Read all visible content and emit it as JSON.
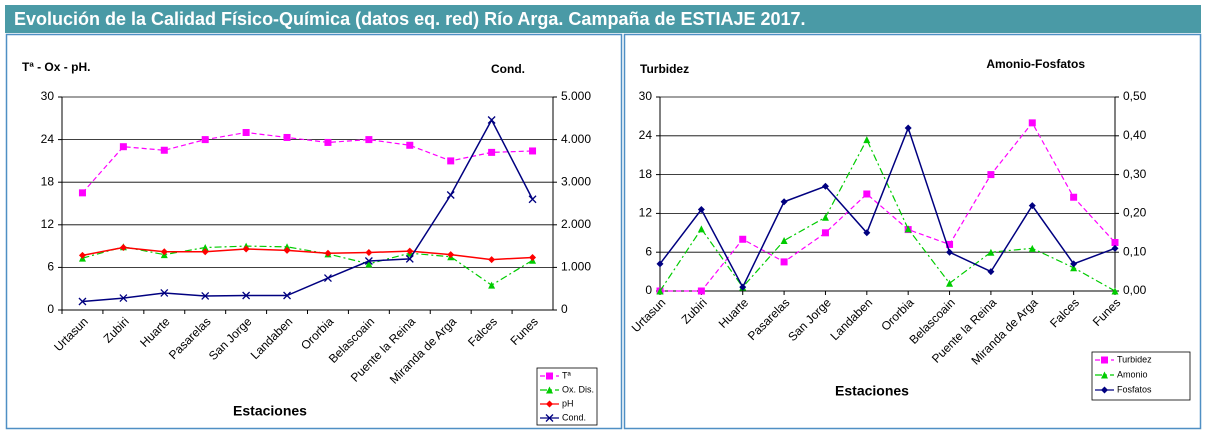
{
  "title": "Evolución de la Calidad Físico-Química (datos eq. red) Río Arga. Campaña de ESTIAJE 2017.",
  "chart_data": [
    {
      "type": "line",
      "ylabel": "Tª - Ox - pH.",
      "y2label": "Cond.",
      "xlabel": "Estaciones",
      "categories": [
        "Urtasun",
        "Zubiri",
        "Huarte",
        "Pasarelas",
        "San Jorge",
        "Landaben",
        "Ororbia",
        "Belascoain",
        "Puente la Reina",
        "Miranda de Arga",
        "Falces",
        "Funes"
      ],
      "ylim": [
        0,
        30
      ],
      "yticks": [
        0,
        6,
        12,
        18,
        24,
        30
      ],
      "y2lim": [
        0,
        5000
      ],
      "y2ticks": [
        {
          "value": 0,
          "label": "0"
        },
        {
          "value": 1000,
          "label": "1.000"
        },
        {
          "value": 2000,
          "label": "2.000"
        },
        {
          "value": 3000,
          "label": "3.000"
        },
        {
          "value": 4000,
          "label": "4.000"
        },
        {
          "value": 5000,
          "label": "5.000"
        }
      ],
      "grid": true,
      "legend": "bottom-right",
      "series": [
        {
          "name": "Tª",
          "color": "#ff00ff",
          "linestyle": "dashed",
          "marker": "square",
          "values": [
            16.5,
            23,
            22.5,
            24,
            25,
            24.3,
            23.6,
            24,
            23.2,
            21,
            22.2,
            22.4
          ]
        },
        {
          "name": "Ox. Dis.",
          "color": "#00cc00",
          "linestyle": "dashdot",
          "marker": "triangle",
          "values": [
            7.3,
            8.9,
            7.8,
            8.8,
            9,
            8.9,
            7.9,
            6.5,
            8,
            7.5,
            3.5,
            7
          ]
        },
        {
          "name": "pH",
          "color": "#ff0000",
          "linestyle": "solid",
          "marker": "diamond",
          "values": [
            7.7,
            8.8,
            8.2,
            8.2,
            8.6,
            8.4,
            8.0,
            8.1,
            8.3,
            7.8,
            7.1,
            7.4
          ]
        },
        {
          "name": "Cond.",
          "color": "#000080",
          "linestyle": "solid",
          "marker": "x",
          "axis": "y2",
          "values": [
            200,
            280,
            400,
            330,
            340,
            340,
            750,
            1150,
            1200,
            2700,
            4460,
            2600
          ]
        }
      ]
    },
    {
      "type": "line",
      "ylabel": "Turbidez",
      "y2label": "Amonio-Fosfatos",
      "xlabel": "Estaciones",
      "categories": [
        "Urtasun",
        "Zubiri",
        "Huarte",
        "Pasarelas",
        "San Jorge",
        "Landaben",
        "Ororbia",
        "Belascoain",
        "Puente la Reina",
        "Miranda de Arga",
        "Falces",
        "Funes"
      ],
      "ylim": [
        0,
        30
      ],
      "yticks": [
        0,
        6,
        12,
        18,
        24,
        30
      ],
      "y2lim": [
        0,
        0.5
      ],
      "y2ticks": [
        {
          "value": 0,
          "label": "0,00"
        },
        {
          "value": 0.1,
          "label": "0,10"
        },
        {
          "value": 0.2,
          "label": "0,20"
        },
        {
          "value": 0.3,
          "label": "0,30"
        },
        {
          "value": 0.4,
          "label": "0,40"
        },
        {
          "value": 0.5,
          "label": "0,50"
        }
      ],
      "grid": true,
      "legend": "bottom-right",
      "series": [
        {
          "name": "Turbidez",
          "color": "#ff00ff",
          "linestyle": "dashed",
          "marker": "square",
          "values": [
            0,
            0,
            8,
            4.5,
            9,
            15,
            9.5,
            7.2,
            18,
            26,
            14.5,
            7.5
          ]
        },
        {
          "name": "Amonio",
          "color": "#00cc00",
          "linestyle": "dashdot",
          "marker": "triangle",
          "axis": "y2",
          "values": [
            0.0,
            0.16,
            0.01,
            0.13,
            0.19,
            0.39,
            0.16,
            0.02,
            0.1,
            0.11,
            0.06,
            0.0
          ]
        },
        {
          "name": "Fosfatos",
          "color": "#000080",
          "linestyle": "solid",
          "marker": "diamond",
          "axis": "y2",
          "values": [
            0.07,
            0.21,
            0.01,
            0.23,
            0.27,
            0.15,
            0.42,
            0.1,
            0.05,
            0.22,
            0.07,
            0.11
          ]
        }
      ]
    }
  ]
}
